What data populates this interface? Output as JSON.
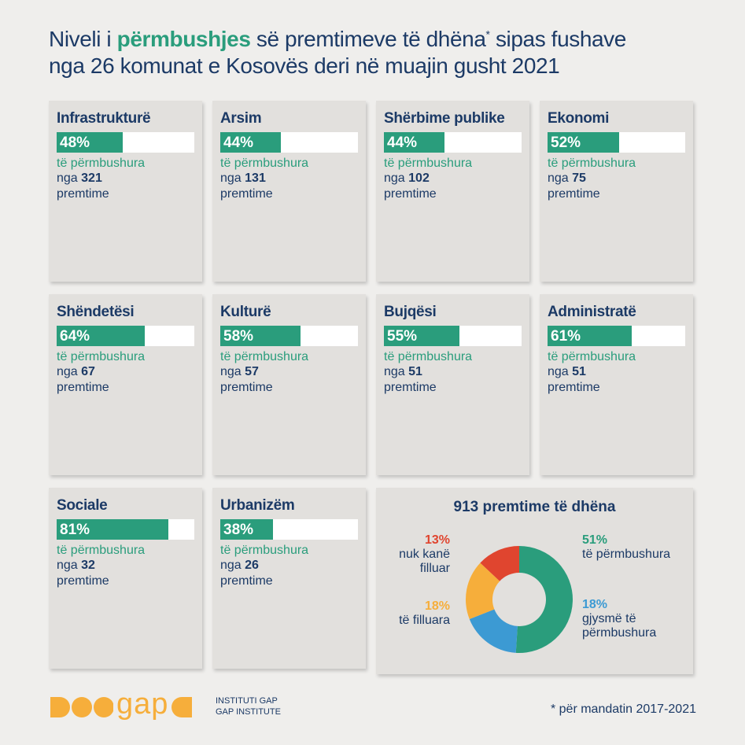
{
  "title": {
    "part1": "Niveli i ",
    "highlight": "përmbushjes",
    "part2": " së premtimeve të dhëna",
    "sup": "*",
    "part3": " sipas fushave",
    "line2": "nga 26 komunat e Kosovës deri në muajin gusht 2021"
  },
  "labels": {
    "status": "të përmbushura",
    "count_prefix": "nga",
    "count_suffix": "premtime"
  },
  "bar_color": "#2a9d7c",
  "cards": [
    {
      "name": "Infrastrukturë",
      "value": 48,
      "value_label": "48%",
      "count": 321
    },
    {
      "name": "Arsim",
      "value": 44,
      "value_label": "44%",
      "count": 131
    },
    {
      "name": "Shërbime publike",
      "value": 44,
      "value_label": "44%",
      "count": 102
    },
    {
      "name": "Ekonomi",
      "value": 52,
      "value_label": "52%",
      "count": 75
    },
    {
      "name": "Shëndetësi",
      "value": 64,
      "value_label": "64%",
      "count": 67
    },
    {
      "name": "Kulturë",
      "value": 58,
      "value_label": "58%",
      "count": 57
    },
    {
      "name": "Bujqësi",
      "value": 55,
      "value_label": "55%",
      "count": 51
    },
    {
      "name": "Administratë",
      "value": 61,
      "value_label": "61%",
      "count": 51
    },
    {
      "name": "Sociale",
      "value": 81,
      "value_label": "81%",
      "count": 32
    },
    {
      "name": "Urbanizëm",
      "value": 38,
      "value_label": "38%",
      "count": 26
    }
  ],
  "summary": {
    "title": "913 premtime të dhëna",
    "segments": [
      {
        "label": "të përmbushura",
        "value": 51,
        "value_label": "51%",
        "color": "#2a9d7c"
      },
      {
        "label": "gjysmë të përmbushura",
        "value": 18,
        "value_label": "18%",
        "color": "#3c9ad3"
      },
      {
        "label": "të filluara",
        "value": 18,
        "value_label": "18%",
        "color": "#f6ae3b"
      },
      {
        "label": "nuk kanë filluar",
        "value": 13,
        "value_label": "13%",
        "color": "#e0452f"
      }
    ]
  },
  "footer": {
    "logo": "gap",
    "institute_1": "INSTITUTI GAP",
    "institute_2": "GAP INSTITUTE",
    "note": "* për mandatin 2017-2021"
  }
}
